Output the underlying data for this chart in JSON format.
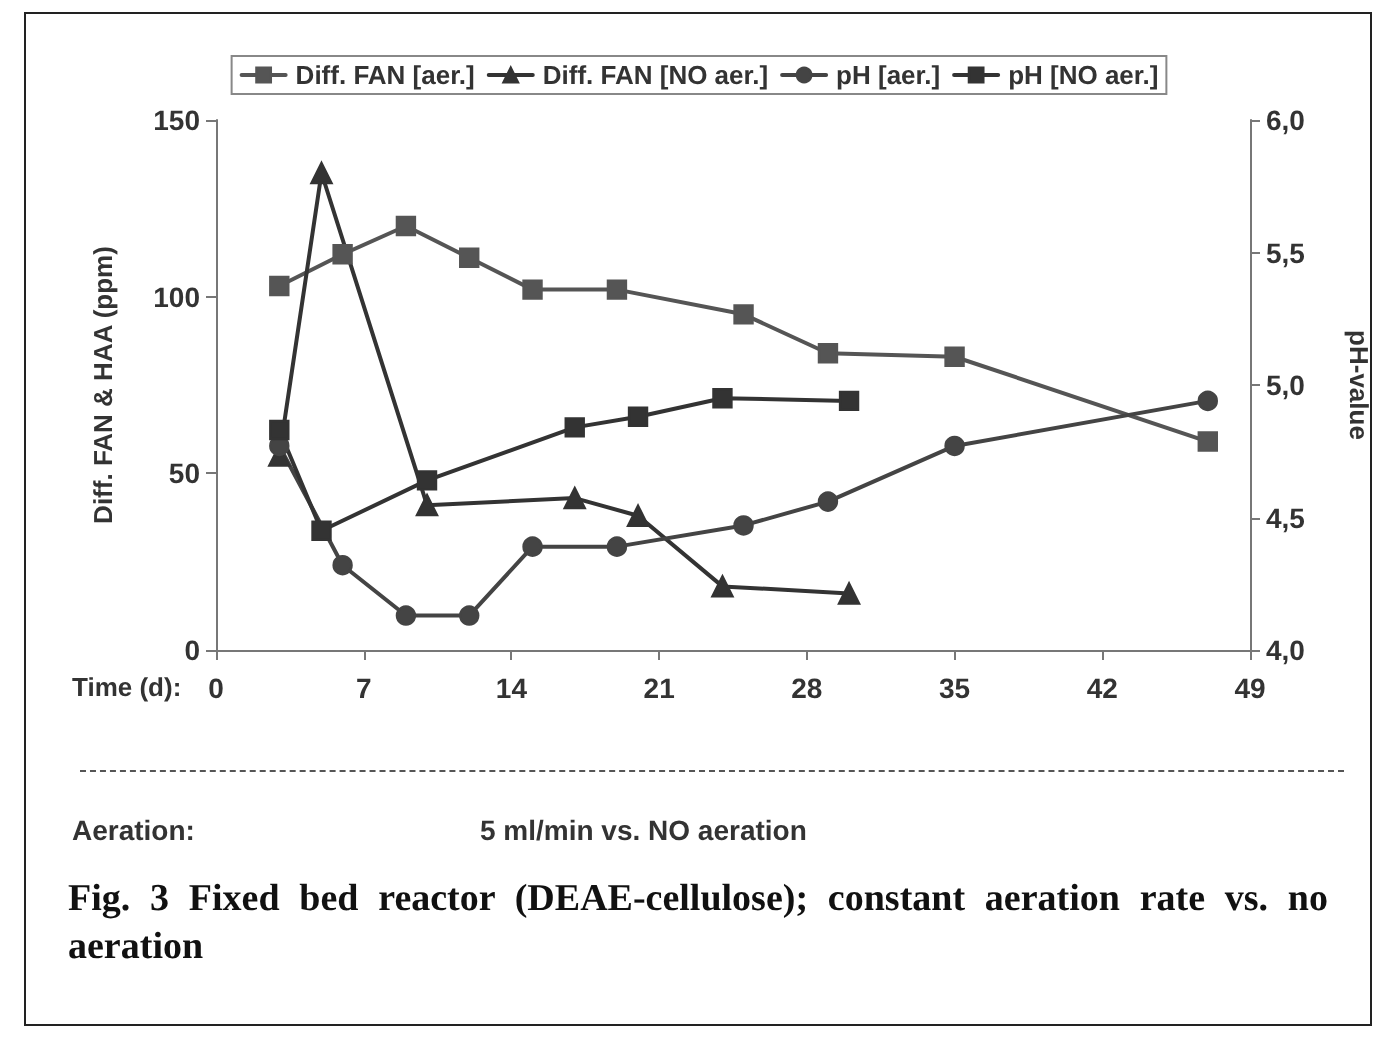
{
  "chart_data": {
    "type": "line",
    "title": "Fig. 3  Fixed bed reactor (DEAE-cellulose); constant aeration rate vs. no aeration",
    "xlabel": "Time (d):",
    "ylabel": "Diff. FAN & HAA (ppm)",
    "y2label": "pH-value",
    "annotations": [
      "Aeration:",
      "5 ml/min   vs.   NO aeration"
    ],
    "xlim": [
      0,
      49
    ],
    "xticks": [
      0,
      7,
      14,
      21,
      28,
      35,
      42,
      49
    ],
    "ylim": [
      0,
      150
    ],
    "yticks": [
      0,
      50,
      100,
      150
    ],
    "y2lim": [
      4,
      6
    ],
    "y2ticks": [
      {
        "value": 4,
        "label": "4,0"
      },
      {
        "value": 4.5,
        "label": "4,5"
      },
      {
        "value": 5,
        "label": "5,0"
      },
      {
        "value": 5.5,
        "label": "5,5"
      },
      {
        "value": 6,
        "label": "6,0"
      }
    ],
    "grid": false,
    "legend": "top",
    "line_style": "solid",
    "series": [
      {
        "name": "Diff. FAN [aer.]",
        "color": "#555555",
        "marker": "square",
        "x": [
          3,
          6,
          9,
          12,
          15,
          19,
          25,
          29,
          35,
          47
        ],
        "values": [
          103,
          112,
          120,
          111,
          102,
          102,
          95,
          84,
          83,
          59
        ]
      },
      {
        "name": "Diff. FAN [NO aer.]",
        "color": "#333333",
        "marker": "triangle",
        "x": [
          3,
          5,
          10,
          17,
          20,
          24,
          30
        ],
        "values": [
          55,
          135,
          41,
          43,
          38,
          18,
          16
        ]
      },
      {
        "name": "pH [aer.]",
        "color": "#444444",
        "marker": "circle",
        "axis": "y2",
        "x": [
          3,
          6,
          9,
          12,
          15,
          19,
          25,
          29,
          35,
          47
        ],
        "values": [
          4.77,
          4.32,
          4.13,
          4.13,
          4.39,
          4.39,
          4.47,
          4.56,
          4.77,
          4.94
        ]
      },
      {
        "name": "pH [NO aer.]",
        "color": "#333333",
        "marker": "square",
        "axis": "y2",
        "x": [
          3,
          5,
          10,
          17,
          20,
          24,
          30
        ],
        "values": [
          4.83,
          4.45,
          4.64,
          4.84,
          4.88,
          4.95,
          4.94
        ]
      }
    ]
  }
}
